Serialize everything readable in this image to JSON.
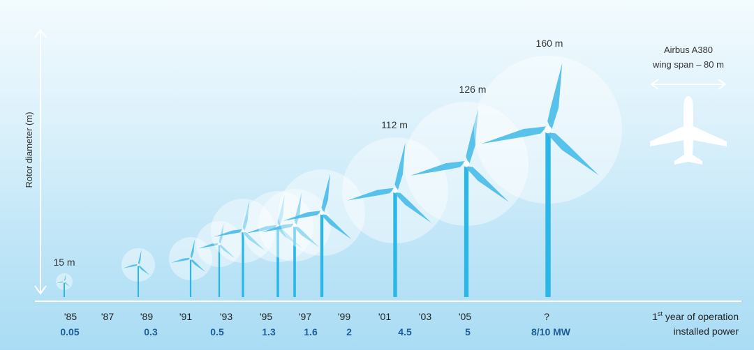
{
  "y_axis_label": "Rotor diameter (m)",
  "size_labels": {
    "first": "15 m",
    "s112": "112 m",
    "s126": "126 m",
    "s160": "160 m"
  },
  "comparison": {
    "line1": "Airbus A380",
    "line2": "wing span – 80 m"
  },
  "years": [
    "'85",
    "'87",
    "'89",
    "'91",
    "'93",
    "'95",
    "'97",
    "'99",
    "'01",
    "'03",
    "'05",
    "?"
  ],
  "powers": [
    "0.05",
    "0.3",
    "0.5",
    "1.3",
    "1.6",
    "2",
    "4.5",
    "5",
    "8/10 MW"
  ],
  "x_axis": {
    "year_base": "1",
    "year_sup": "st",
    "year_rest": " year of operation",
    "power_label": "installed power"
  },
  "colors": {
    "tower": "#29b6e8",
    "blade": "#4bbde9",
    "disc": "#ffffff",
    "axis_text": "#222222",
    "power_text": "#1d5d9a"
  },
  "turbines": [
    {
      "diameter_m": 15
    },
    {
      "diameter_m": null
    },
    {
      "diameter_m": null
    },
    {
      "diameter_m": null
    },
    {
      "diameter_m": null
    },
    {
      "diameter_m": null
    },
    {
      "diameter_m": null
    },
    {
      "diameter_m": null
    },
    {
      "diameter_m": null
    },
    {
      "diameter_m": 112
    },
    {
      "diameter_m": 126
    },
    {
      "diameter_m": 160
    }
  ]
}
